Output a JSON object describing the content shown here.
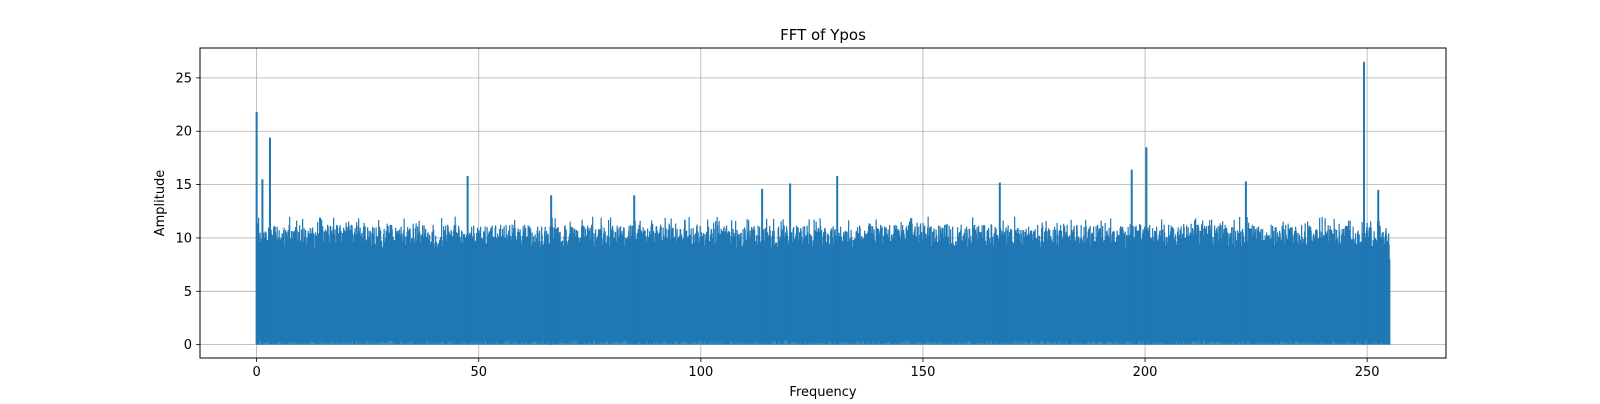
{
  "chart_data": {
    "type": "line",
    "title": "FFT of Ypos",
    "xlabel": "Frequency",
    "ylabel": "Amplitude",
    "xlim": [
      -12.75,
      267.75
    ],
    "ylim": [
      -1.25,
      27.8
    ],
    "xticks": [
      0,
      50,
      100,
      150,
      200,
      250
    ],
    "yticks": [
      0,
      5,
      10,
      15,
      20,
      25
    ],
    "grid": true,
    "legend": "none",
    "x_range": [
      0,
      255
    ],
    "line_color": "#1f77b4",
    "series": [
      {
        "x": [
          0,
          0.3,
          1.3,
          3.0,
          47.5,
          66.3,
          85.0,
          113.8,
          120.1,
          130.7,
          167.3,
          197.0,
          200.3,
          222.7,
          249.3,
          252.5,
          255.0
        ],
        "values": [
          21.8,
          11.0,
          15.5,
          19.4,
          15.8,
          14.0,
          14.0,
          14.6,
          15.1,
          15.8,
          15.2,
          16.4,
          18.5,
          15.3,
          26.5,
          14.5,
          8.0
        ]
      }
    ],
    "envelope": {
      "typical_peak": [
        9.0,
        12.0
      ],
      "typical_floor": [
        0.0,
        1.0
      ],
      "notable_peaks": [
        {
          "x": 0,
          "y": 21.8
        },
        {
          "x": 3.0,
          "y": 19.4
        },
        {
          "x": 200.3,
          "y": 18.5
        },
        {
          "x": 249.3,
          "y": 26.5
        }
      ]
    }
  }
}
